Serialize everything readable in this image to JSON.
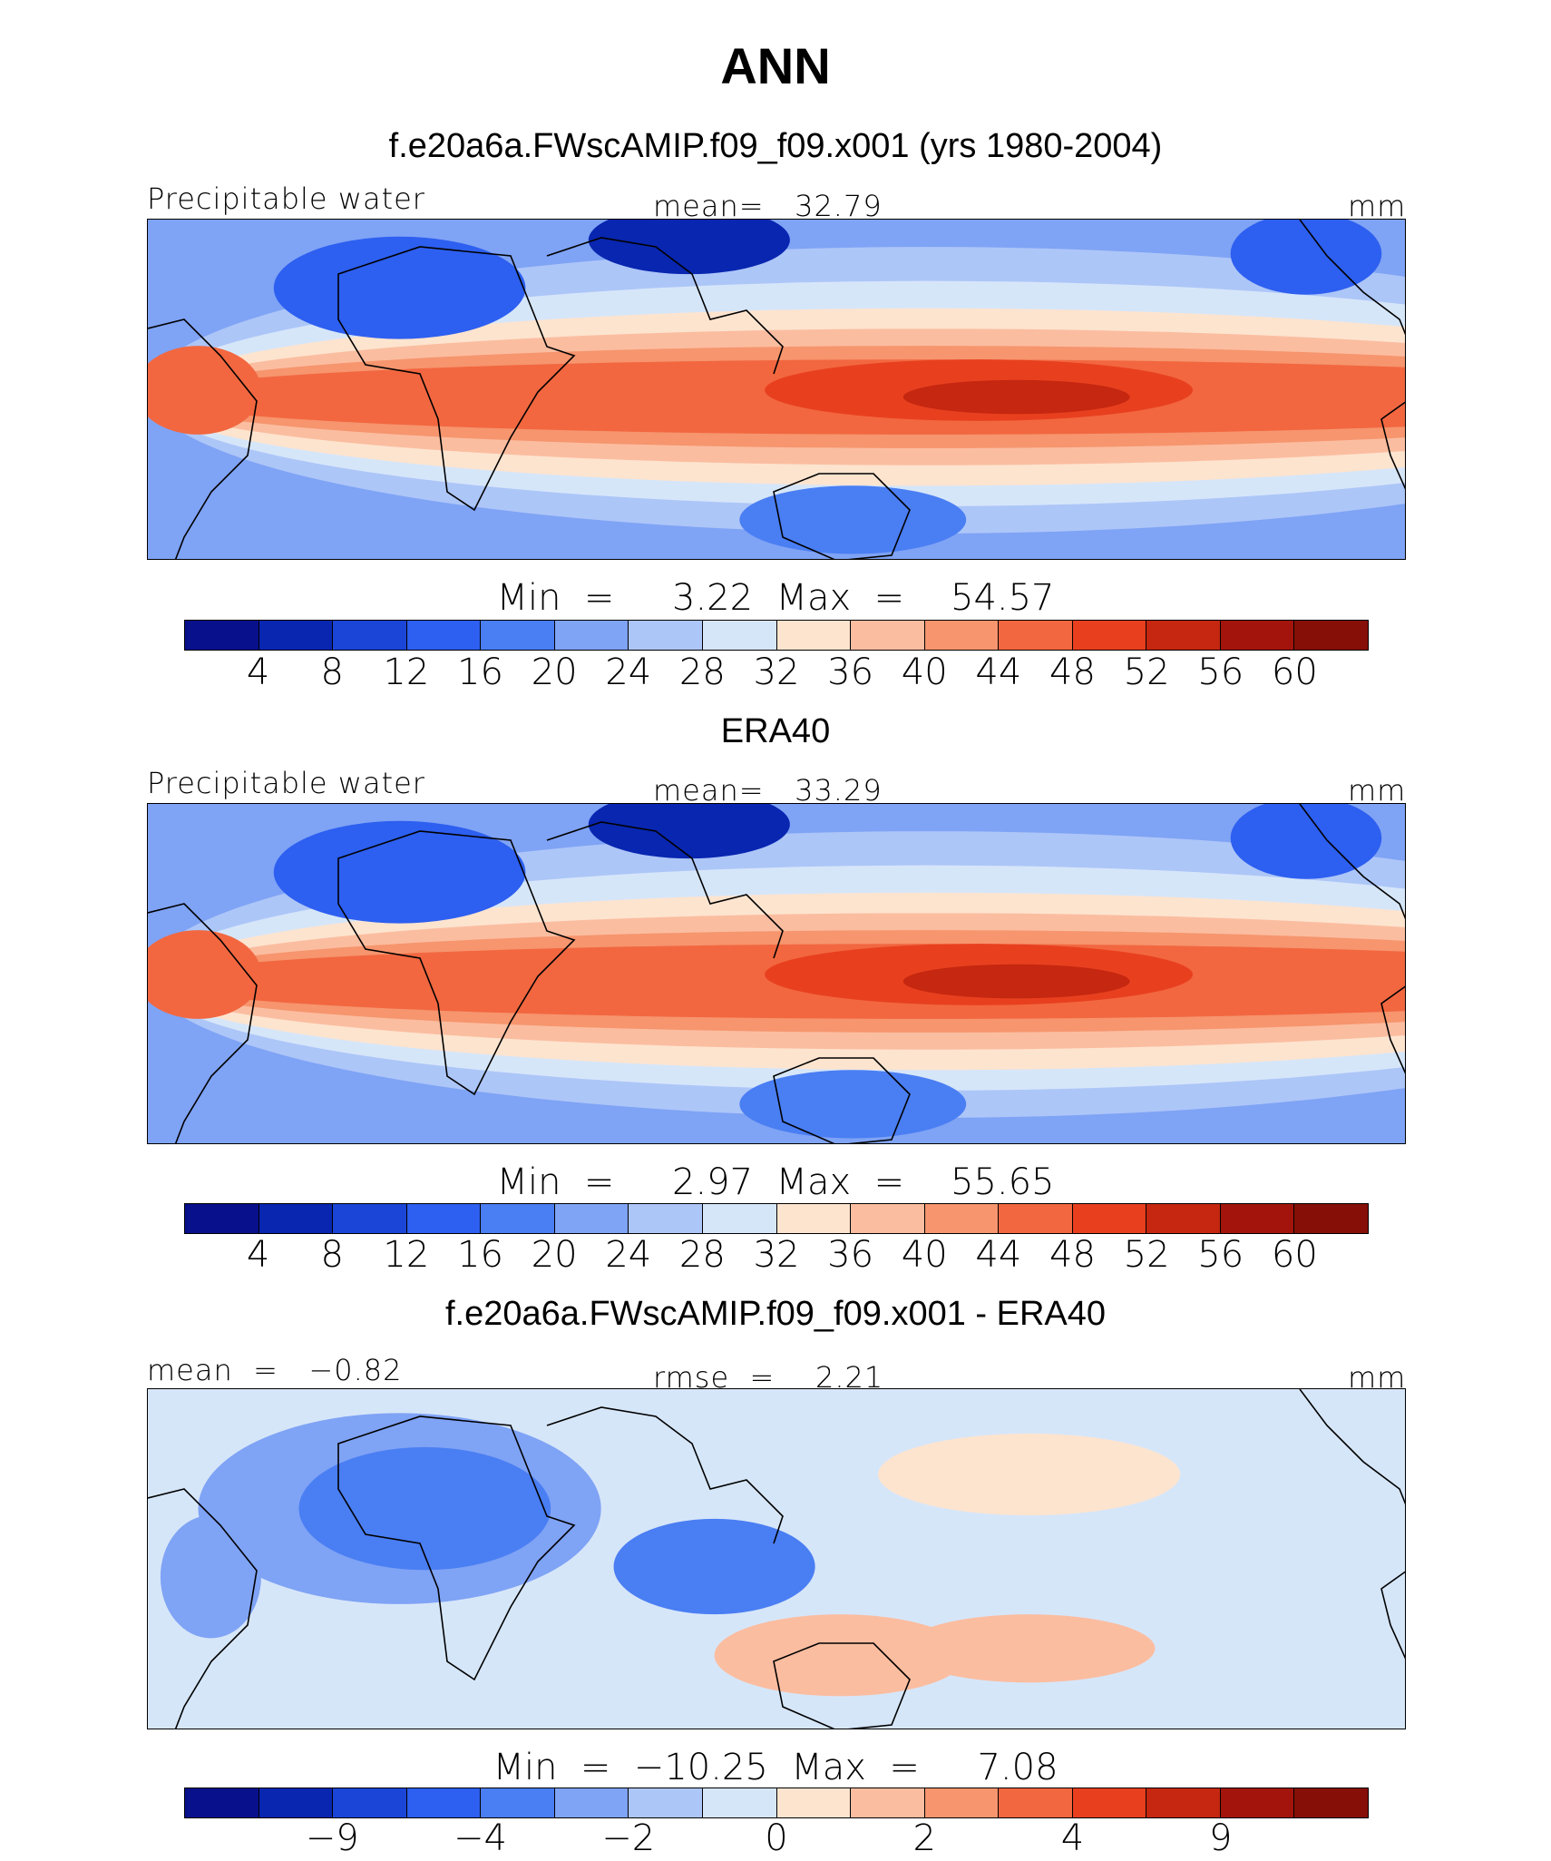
{
  "main_title": "ANN",
  "colors": [
    "#08108b",
    "#0826b0",
    "#1a45d7",
    "#2d5ff0",
    "#4a7ef3",
    "#7fa3f5",
    "#adc6f8",
    "#d6e6f9",
    "#fde4cf",
    "#fbbda0",
    "#f6956e",
    "#f26740",
    "#e8401f",
    "#c52710",
    "#a3150c",
    "#861008"
  ],
  "chart_data": [
    {
      "type": "heatmap",
      "title": "f.e20a6a.FWscAMIP.f09_f09.x001 (yrs 1980-2004)",
      "left_label": "Precipitable water",
      "center_label": "mean=   32.79",
      "unit": "mm",
      "minmax": "Min  =     3.22  Max  =    54.57",
      "levels": [
        4,
        8,
        12,
        16,
        20,
        24,
        28,
        32,
        36,
        40,
        44,
        48,
        52,
        56,
        60
      ],
      "tick_labels": [
        "4",
        "8",
        "12",
        "16",
        "20",
        "24",
        "28",
        "32",
        "36",
        "40",
        "44",
        "48",
        "52",
        "56",
        "60"
      ],
      "min": 3.22,
      "max": 54.57,
      "mean": 32.79
    },
    {
      "type": "heatmap",
      "title": "ERA40",
      "left_label": "Precipitable water",
      "center_label": "mean=   33.29",
      "unit": "mm",
      "minmax": "Min  =     2.97  Max  =    55.65",
      "levels": [
        4,
        8,
        12,
        16,
        20,
        24,
        28,
        32,
        36,
        40,
        44,
        48,
        52,
        56,
        60
      ],
      "tick_labels": [
        "4",
        "8",
        "12",
        "16",
        "20",
        "24",
        "28",
        "32",
        "36",
        "40",
        "44",
        "48",
        "52",
        "56",
        "60"
      ],
      "min": 2.97,
      "max": 55.65,
      "mean": 33.29
    },
    {
      "type": "heatmap",
      "title": "f.e20a6a.FWscAMIP.f09_f09.x001 - ERA40",
      "left_label": "mean  =   −0.82",
      "center_label": "rmse  =    2.21",
      "unit": "mm",
      "minmax": "Min  =  −10.25  Max  =     7.08",
      "levels": [
        -12,
        -9,
        -6,
        -4,
        -3,
        -2,
        -1,
        0,
        1,
        2,
        3,
        4,
        6,
        9,
        12
      ],
      "tick_labels": [
        "−9",
        "−4",
        "−2",
        "0",
        "2",
        "4",
        "9"
      ],
      "tick_level_index": [
        1,
        3,
        5,
        7,
        9,
        11,
        13
      ],
      "min": -10.25,
      "max": 7.08,
      "mean": -0.82,
      "rmse": 2.21
    }
  ]
}
